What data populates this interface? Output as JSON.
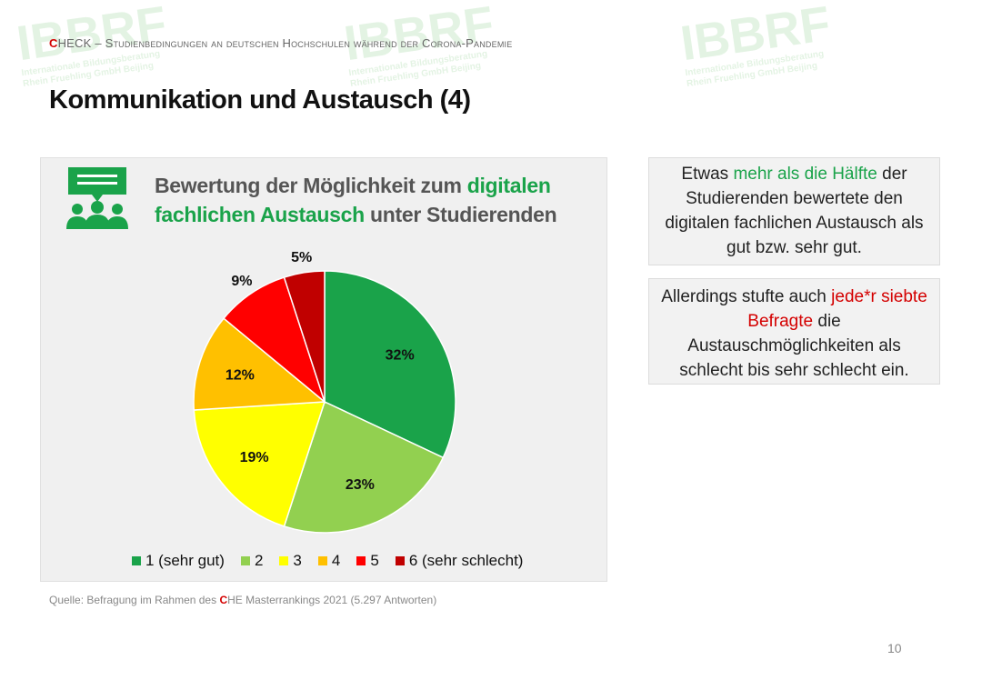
{
  "header": {
    "brand_c": "C",
    "brand_rest": "HECK",
    "subtitle": " – Studienbedingungen an deutschen Hochschulen während der Corona-Pandemie"
  },
  "page_title": "Kommunikation und Austausch (4)",
  "chart_title": {
    "part1": "Bewertung der Möglichkeit zum ",
    "highlight1": "digitalen fachlichen Austausch",
    "part2": " unter Studierenden"
  },
  "chart_data": {
    "type": "pie",
    "title": "Bewertung der Möglichkeit zum digitalen fachlichen Austausch unter Studierenden",
    "categories": [
      "1 (sehr gut)",
      "2",
      "3",
      "4",
      "5",
      "6 (sehr schlecht)"
    ],
    "values": [
      32,
      23,
      19,
      12,
      9,
      5
    ],
    "labels": [
      "32%",
      "23%",
      "19%",
      "12%",
      "9%",
      "5%"
    ],
    "colors": [
      "#1aa34a",
      "#92d050",
      "#ffff00",
      "#ffc000",
      "#ff0000",
      "#c00000"
    ],
    "start": "12 o'clock",
    "direction": "clockwise",
    "legend_position": "bottom"
  },
  "info_box_1": {
    "text1": "Etwas ",
    "highlight": "mehr als die Hälfte",
    "text2": " der Studierenden bewertete den digitalen fachlichen Austausch als gut bzw. sehr gut."
  },
  "info_box_2": {
    "text1": "Allerdings stufte auch ",
    "highlight": "jede*r siebte Befragte",
    "text2": " die Austauschmöglichkeiten als schlecht bis sehr schlecht ein."
  },
  "source": {
    "prefix": "Quelle: Befragung im Rahmen des ",
    "brand_c": "C",
    "suffix": "HE Masterrankings 2021 (5.297 Antworten)"
  },
  "page_number": "10",
  "watermark": {
    "logo": "IBBRF",
    "line1": "Internationale Bildungsberatung",
    "line2": "Rhein Fruehling GmbH Beijing"
  }
}
